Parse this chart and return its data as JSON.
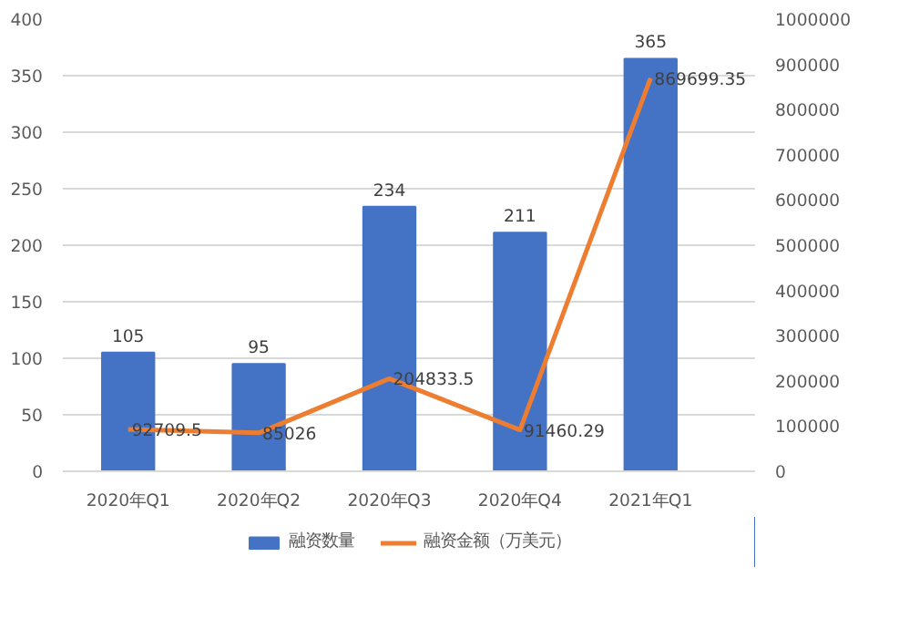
{
  "chart_data": {
    "type": "bar",
    "categories": [
      "2020年Q1",
      "2020年Q2",
      "2020年Q3",
      "2020年Q4",
      "2021年Q1"
    ],
    "series": [
      {
        "name": "融资数量",
        "color": "#4472c4",
        "values": [
          105,
          95,
          234,
          211,
          365
        ]
      },
      {
        "name": "融资金额（万美元）",
        "type": "line",
        "axis": "y2",
        "color": "#ed7d31",
        "values": [
          92709.5,
          85026,
          204833.5,
          91460.29,
          869699.35
        ]
      }
    ],
    "ylim": [
      0,
      400
    ],
    "yticks": [
      0,
      50,
      100,
      150,
      200,
      250,
      300,
      350,
      400
    ],
    "y2lim": [
      0,
      1000000
    ],
    "y2ticks": [
      0,
      100000,
      200000,
      300000,
      400000,
      500000,
      600000,
      700000,
      800000,
      900000,
      1000000
    ],
    "grid": "y",
    "legend": "bottom",
    "data_labels": true,
    "marker": "none"
  }
}
